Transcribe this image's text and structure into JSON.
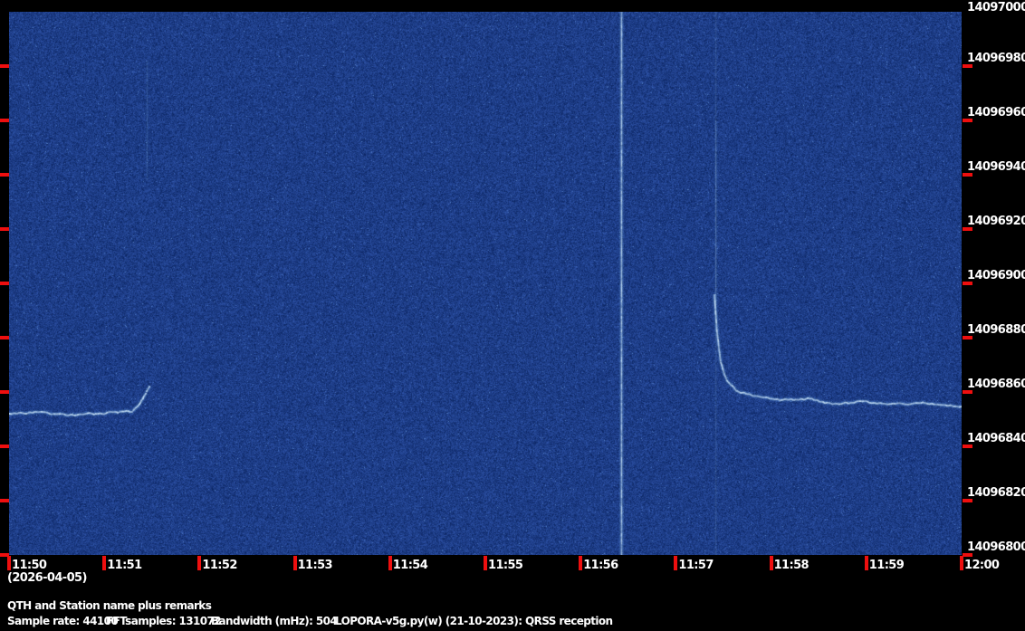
{
  "app": {
    "name": "LOPORA QRSS grabber spectrogram display"
  },
  "colors": {
    "background": "#000000",
    "tick_red": "#ee0f0f",
    "text_white": "#ffffff",
    "noise_dark_rgb": [
      9,
      34,
      94
    ],
    "noise_light_rgb": [
      50,
      88,
      176
    ],
    "sparkle_rgb": [
      122,
      172,
      222
    ],
    "trace_core": "#d2ecff",
    "trace_glow": "#6fb4e8"
  },
  "freq_axis": {
    "unit": "Hz",
    "top_hz": 14097000,
    "bottom_hz": 14096800,
    "tick_step_hz": 20,
    "labels": [
      "14097000",
      "14096980",
      "14096960",
      "14096940",
      "14096920",
      "14096900",
      "14096880",
      "14096860",
      "14096840",
      "14096820",
      "14096800"
    ]
  },
  "time_axis": {
    "labels": [
      "11:50",
      "11:51",
      "11:52",
      "11:53",
      "11:54",
      "11:55",
      "11:56",
      "11:57",
      "11:58",
      "11:59",
      "12:00"
    ],
    "date_label": "(2026-04-05)"
  },
  "footer": {
    "station_line": "QTH and Station name plus remarks",
    "info_items": [
      {
        "text": "Sample rate: 44100",
        "x": 8
      },
      {
        "text": "FFTsamples: 131072",
        "x": 117
      },
      {
        "text": "Bandwidth (mHz): 504",
        "x": 233
      },
      {
        "text": "LOPORA-v5g.py(w) (21-10-2023): QRSS reception",
        "x": 370
      }
    ]
  },
  "chart_data": {
    "type": "heatmap",
    "subtype": "QRSS spectrogram waterfall (blue noise field, time on x, frequency on y)",
    "title": "",
    "x_unit": "time of day",
    "x_range": [
      "11:50",
      "12:00"
    ],
    "x_ticks": [
      "11:50",
      "11:51",
      "11:52",
      "11:53",
      "11:54",
      "11:55",
      "11:56",
      "11:57",
      "11:58",
      "11:59",
      "12:00"
    ],
    "date": "(2026-04-05)",
    "y_unit": "Hz",
    "y_range": [
      14096800,
      14097000
    ],
    "y_ticks": [
      14097000,
      14096980,
      14096960,
      14096940,
      14096920,
      14096900,
      14096880,
      14096860,
      14096840,
      14096820,
      14096800
    ],
    "grid": false,
    "legend": false,
    "features": [
      {
        "name": "qrss-trace-left",
        "desc": "horizontal signal trace ending with upward hook near 11:51.5",
        "kind": "polyline",
        "wavy": true,
        "width": 1.8,
        "opacity": 0.95,
        "points": [
          [
            0.0,
            14096852
          ],
          [
            0.3,
            14096852.5
          ],
          [
            0.6,
            14096851.5
          ],
          [
            0.9,
            14096852
          ],
          [
            1.15,
            14096852.5
          ],
          [
            1.3,
            14096853
          ],
          [
            1.38,
            14096856
          ],
          [
            1.44,
            14096860
          ],
          [
            1.48,
            14096862.5
          ]
        ]
      },
      {
        "name": "faint-birdie-upper-left",
        "desc": "very faint short vertical streak below 11:51.5 near top",
        "kind": "vline",
        "t": 1.45,
        "f_from": 14096982,
        "f_to": 14096938,
        "width": 1.0,
        "opacity": 0.14
      },
      {
        "name": "carrier-vertical-line",
        "desc": "bright vertical interference line at ~11:56.4 spanning full band",
        "kind": "vline",
        "t": 6.43,
        "f_from": 14097000,
        "f_to": 14096800,
        "width": 1.6,
        "opacity": 0.8
      },
      {
        "name": "drift-vertical-faint",
        "desc": "faint vertical line at ~11:57.4 spanning full band",
        "kind": "vline",
        "t": 7.42,
        "f_from": 14097000,
        "f_to": 14096800,
        "width": 1.2,
        "opacity": 0.12
      },
      {
        "name": "drift-vertical-faint-mid",
        "desc": "slightly brighter portion of faint vertical line",
        "kind": "vline",
        "t": 7.42,
        "f_from": 14096960,
        "f_to": 14096893,
        "width": 1.2,
        "opacity": 0.2
      },
      {
        "name": "qrss-trace-right-drift",
        "desc": "trace drifting down from ~14096896 Hz settling near 14096855 Hz until 12:00",
        "kind": "polyline",
        "wavy": true,
        "width": 1.8,
        "opacity": 0.9,
        "points": [
          [
            7.405,
            14096896
          ],
          [
            7.43,
            14096883
          ],
          [
            7.47,
            14096871
          ],
          [
            7.53,
            14096864.5
          ],
          [
            7.64,
            14096860.5
          ],
          [
            7.82,
            14096858.5
          ],
          [
            8.1,
            14096857
          ],
          [
            8.4,
            14096857.5
          ],
          [
            8.65,
            14096855.5
          ],
          [
            8.95,
            14096856.5
          ],
          [
            9.25,
            14096855.5
          ],
          [
            9.6,
            14096856
          ],
          [
            10.0,
            14096854.5
          ]
        ]
      }
    ]
  }
}
